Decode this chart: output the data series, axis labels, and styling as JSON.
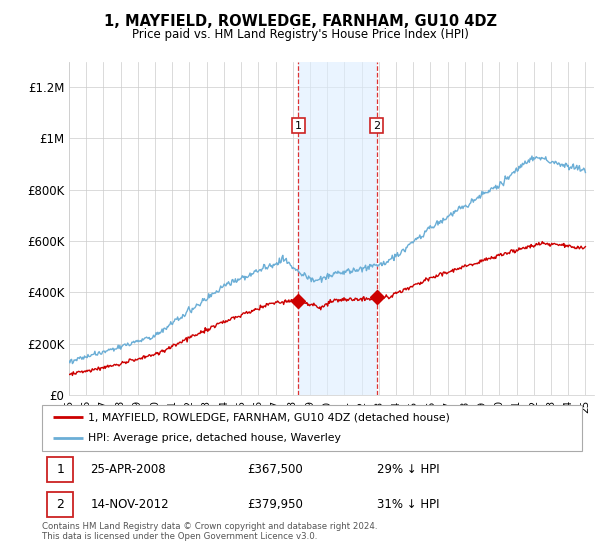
{
  "title": "1, MAYFIELD, ROWLEDGE, FARNHAM, GU10 4DZ",
  "subtitle": "Price paid vs. HM Land Registry's House Price Index (HPI)",
  "ylabel_ticks": [
    "£0",
    "£200K",
    "£400K",
    "£600K",
    "£800K",
    "£1M",
    "£1.2M"
  ],
  "ytick_values": [
    0,
    200000,
    400000,
    600000,
    800000,
    1000000,
    1200000
  ],
  "ylim": [
    0,
    1300000
  ],
  "xlim_start": 1995.0,
  "xlim_end": 2025.5,
  "sale1_date": 2008.32,
  "sale1_price": 367500,
  "sale1_label": "1",
  "sale1_date_str": "25-APR-2008",
  "sale1_price_str": "£367,500",
  "sale1_hpi_str": "29% ↓ HPI",
  "sale2_date": 2012.87,
  "sale2_price": 379950,
  "sale2_label": "2",
  "sale2_date_str": "14-NOV-2012",
  "sale2_price_str": "£379,950",
  "sale2_hpi_str": "31% ↓ HPI",
  "legend_line1": "1, MAYFIELD, ROWLEDGE, FARNHAM, GU10 4DZ (detached house)",
  "legend_line2": "HPI: Average price, detached house, Waverley",
  "footer": "Contains HM Land Registry data © Crown copyright and database right 2024.\nThis data is licensed under the Open Government Licence v3.0.",
  "hpi_color": "#6baed6",
  "price_color": "#cc0000",
  "shade_color": "#ddeeff",
  "dashed_color": "#dd3333",
  "grid_color": "#cccccc",
  "bg_color": "#ffffff"
}
